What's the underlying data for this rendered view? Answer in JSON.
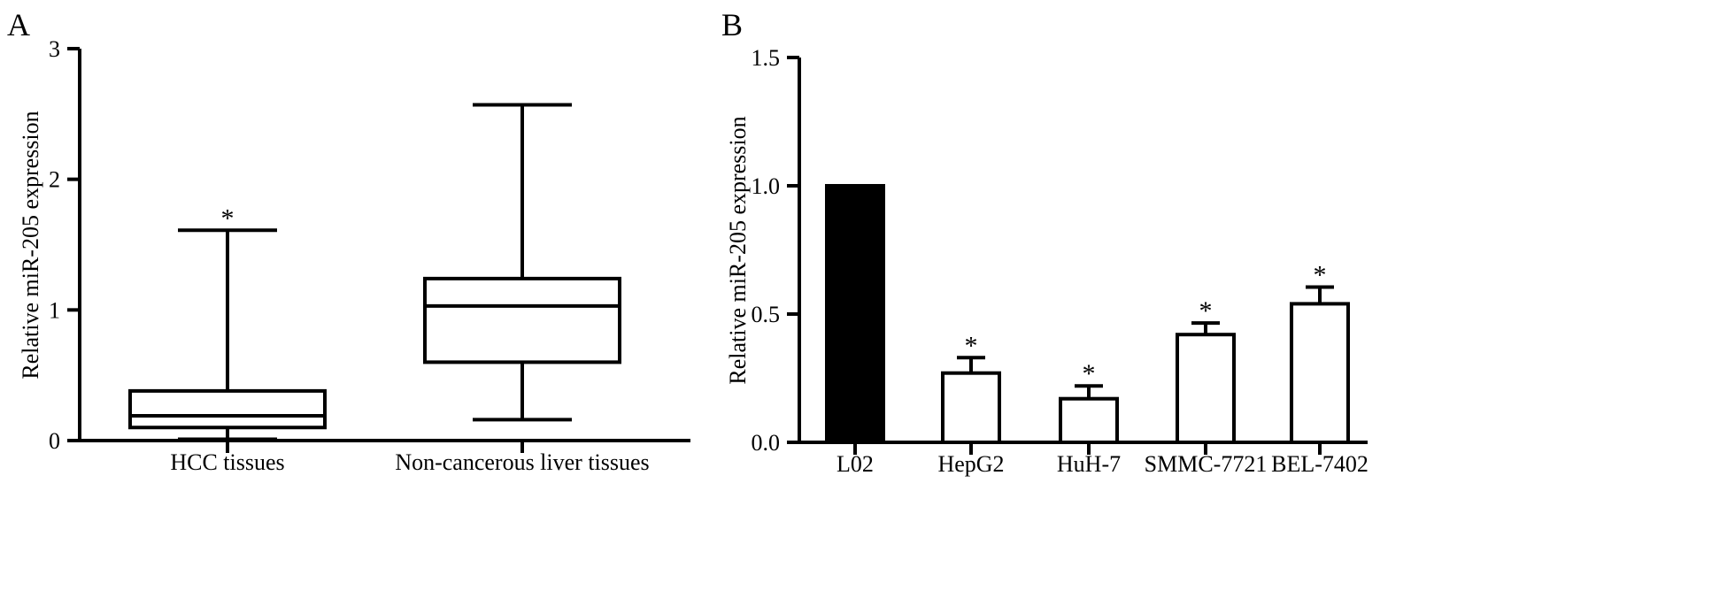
{
  "chart_data": [
    {
      "panel_label": "A",
      "type": "box",
      "xlabel": "",
      "ylabel": "Relative miR-205 expression",
      "ylim": [
        0,
        3
      ],
      "yticks": [
        "0",
        "1",
        "2",
        "3"
      ],
      "categories": [
        "HCC tissues",
        "Non-cancerous liver tissues"
      ],
      "boxes": [
        {
          "category": "HCC tissues",
          "min": 0.01,
          "q1": 0.1,
          "median": 0.19,
          "q3": 0.38,
          "max": 1.61,
          "annotation": "*"
        },
        {
          "category": "Non-cancerous liver tissues",
          "min": 0.16,
          "q1": 0.6,
          "median": 1.03,
          "q3": 1.24,
          "max": 2.57,
          "annotation": ""
        }
      ]
    },
    {
      "panel_label": "B",
      "type": "bar",
      "xlabel": "",
      "ylabel": "Relative miR-205 expression",
      "ylim": [
        0,
        1.5
      ],
      "yticks": [
        "0.0",
        "0.5",
        "1.0",
        "1.5"
      ],
      "categories": [
        "L02",
        "HepG2",
        "HuH-7",
        "SMMC-7721",
        "BEL-7402"
      ],
      "values": [
        1.0,
        0.27,
        0.17,
        0.42,
        0.54
      ],
      "errors": [
        0.0,
        0.06,
        0.05,
        0.045,
        0.065
      ],
      "fills": [
        "#000000",
        "#ffffff",
        "#ffffff",
        "#ffffff",
        "#ffffff"
      ],
      "annotations": [
        "",
        "*",
        "*",
        "*",
        "*"
      ]
    }
  ]
}
